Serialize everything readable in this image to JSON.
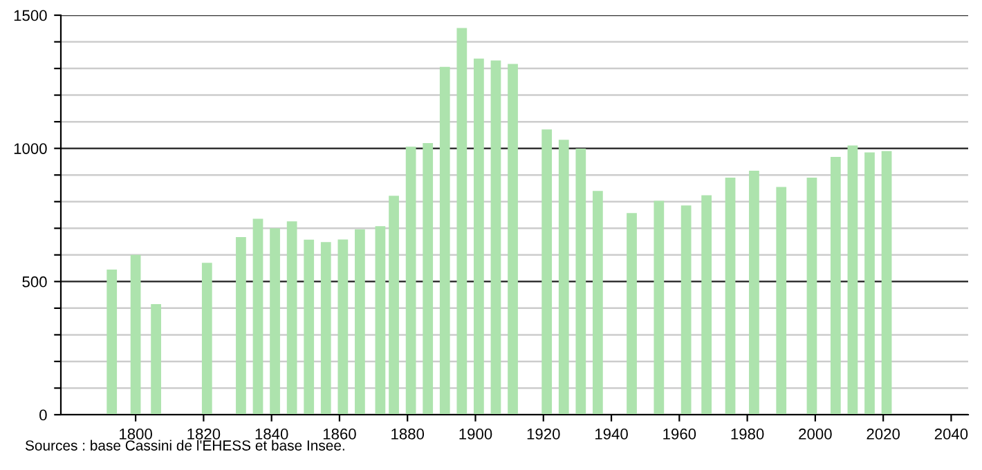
{
  "chart_data": {
    "type": "bar",
    "x": [
      1793,
      1800,
      1806,
      1821,
      1831,
      1836,
      1841,
      1846,
      1851,
      1856,
      1861,
      1866,
      1872,
      1876,
      1881,
      1886,
      1891,
      1896,
      1901,
      1906,
      1911,
      1921,
      1926,
      1931,
      1936,
      1946,
      1954,
      1962,
      1968,
      1975,
      1982,
      1990,
      1999,
      2006,
      2011,
      2016,
      2021
    ],
    "values": [
      545,
      600,
      415,
      570,
      667,
      736,
      700,
      726,
      657,
      648,
      658,
      696,
      708,
      822,
      1006,
      1020,
      1306,
      1452,
      1337,
      1330,
      1317,
      1071,
      1032,
      999,
      840,
      757,
      803,
      786,
      824,
      890,
      916,
      855,
      890,
      968,
      1011,
      985,
      990
    ],
    "color": "#ade3ad",
    "xlim": [
      1778,
      2045
    ],
    "xticks": [
      1800,
      1820,
      1840,
      1860,
      1880,
      1900,
      1920,
      1940,
      1960,
      1980,
      2000,
      2020,
      2040
    ],
    "ylim": [
      0,
      1500
    ],
    "yticks": [
      0,
      {
        "value": 100,
        "label": null
      },
      {
        "value": 200,
        "label": null
      },
      {
        "value": 300,
        "label": null
      },
      {
        "value": 400,
        "label": null
      },
      500,
      {
        "value": 600,
        "label": null
      },
      {
        "value": 700,
        "label": null
      },
      {
        "value": 800,
        "label": null
      },
      {
        "value": 900,
        "label": null
      },
      1000,
      {
        "value": 1100,
        "label": null
      },
      {
        "value": 1200,
        "label": null
      },
      {
        "value": 1300,
        "label": null
      },
      {
        "value": 1400,
        "label": null
      },
      1500
    ],
    "grid": "y",
    "annotations": [
      "Sources : base Cassini de l'EHESS et base Insee."
    ]
  }
}
